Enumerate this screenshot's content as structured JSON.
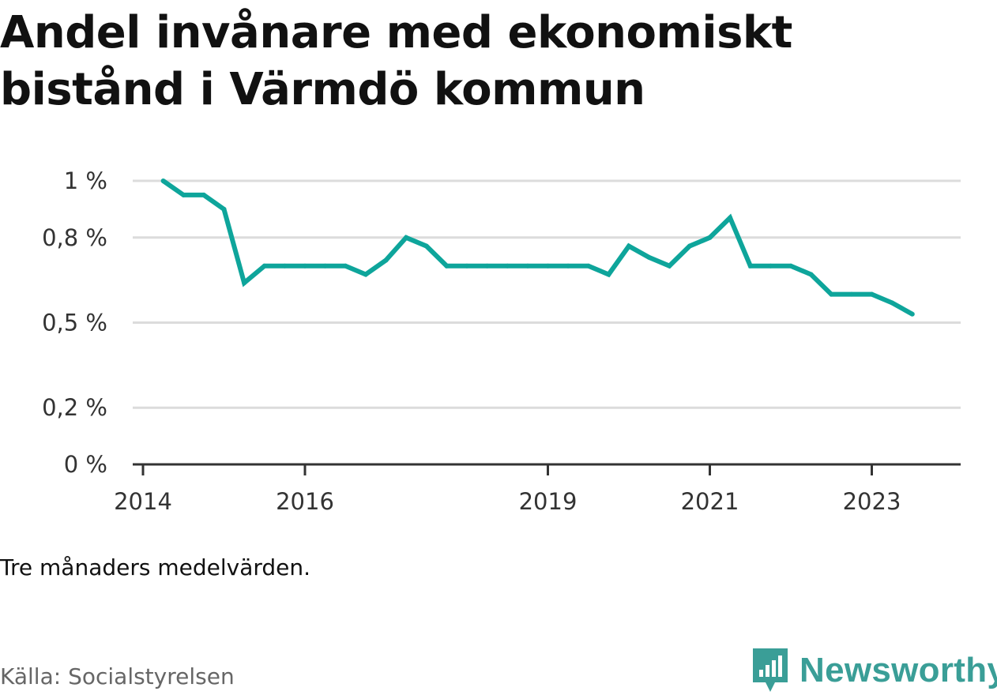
{
  "title": "Andel invånare med ekonomiskt bistånd i Värmdö kommun",
  "note": "Tre månaders medelvärden.",
  "source": "Källa: Socialstyrelsen",
  "brand": {
    "name": "Newsworthy",
    "icon": "newsworthy-logo-icon",
    "color": "#3a9e97"
  },
  "colors": {
    "line": "#0ea59b",
    "grid": "#dcdcdc",
    "axis": "#333333"
  },
  "chart_data": {
    "type": "line",
    "title": "Andel invånare med ekonomiskt bistånd i Värmdö kommun",
    "xlabel": "",
    "ylabel": "",
    "x_ticks": [
      "2014",
      "2016",
      "2019",
      "2021",
      "2023"
    ],
    "y_ticks": [
      "0 %",
      "0,2 %",
      "0,5 %",
      "0,8 %",
      "1 %"
    ],
    "ylim": [
      0,
      1.0
    ],
    "grid": true,
    "legend": "none",
    "series": [
      {
        "values": [
          [
            "2014-04",
            1.0
          ],
          [
            "2014-07",
            0.95
          ],
          [
            "2014-10",
            0.95
          ],
          [
            "2015-01",
            0.9
          ],
          [
            "2015-04",
            0.64
          ],
          [
            "2015-07",
            0.7
          ],
          [
            "2015-10",
            0.7
          ],
          [
            "2016-01",
            0.7
          ],
          [
            "2016-04",
            0.7
          ],
          [
            "2016-07",
            0.7
          ],
          [
            "2016-10",
            0.67
          ],
          [
            "2017-01",
            0.72
          ],
          [
            "2017-04",
            0.8
          ],
          [
            "2017-07",
            0.77
          ],
          [
            "2017-10",
            0.7
          ],
          [
            "2018-01",
            0.7
          ],
          [
            "2018-04",
            0.7
          ],
          [
            "2018-07",
            0.7
          ],
          [
            "2018-10",
            0.7
          ],
          [
            "2019-01",
            0.7
          ],
          [
            "2019-04",
            0.7
          ],
          [
            "2019-07",
            0.7
          ],
          [
            "2019-10",
            0.67
          ],
          [
            "2020-01",
            0.77
          ],
          [
            "2020-04",
            0.73
          ],
          [
            "2020-07",
            0.7
          ],
          [
            "2020-10",
            0.77
          ],
          [
            "2021-01",
            0.8
          ],
          [
            "2021-04",
            0.87
          ],
          [
            "2021-07",
            0.7
          ],
          [
            "2021-10",
            0.7
          ],
          [
            "2022-01",
            0.7
          ],
          [
            "2022-04",
            0.67
          ],
          [
            "2022-07",
            0.6
          ],
          [
            "2022-10",
            0.6
          ],
          [
            "2023-01",
            0.6
          ],
          [
            "2023-04",
            0.57
          ],
          [
            "2023-07",
            0.53
          ]
        ]
      }
    ]
  }
}
